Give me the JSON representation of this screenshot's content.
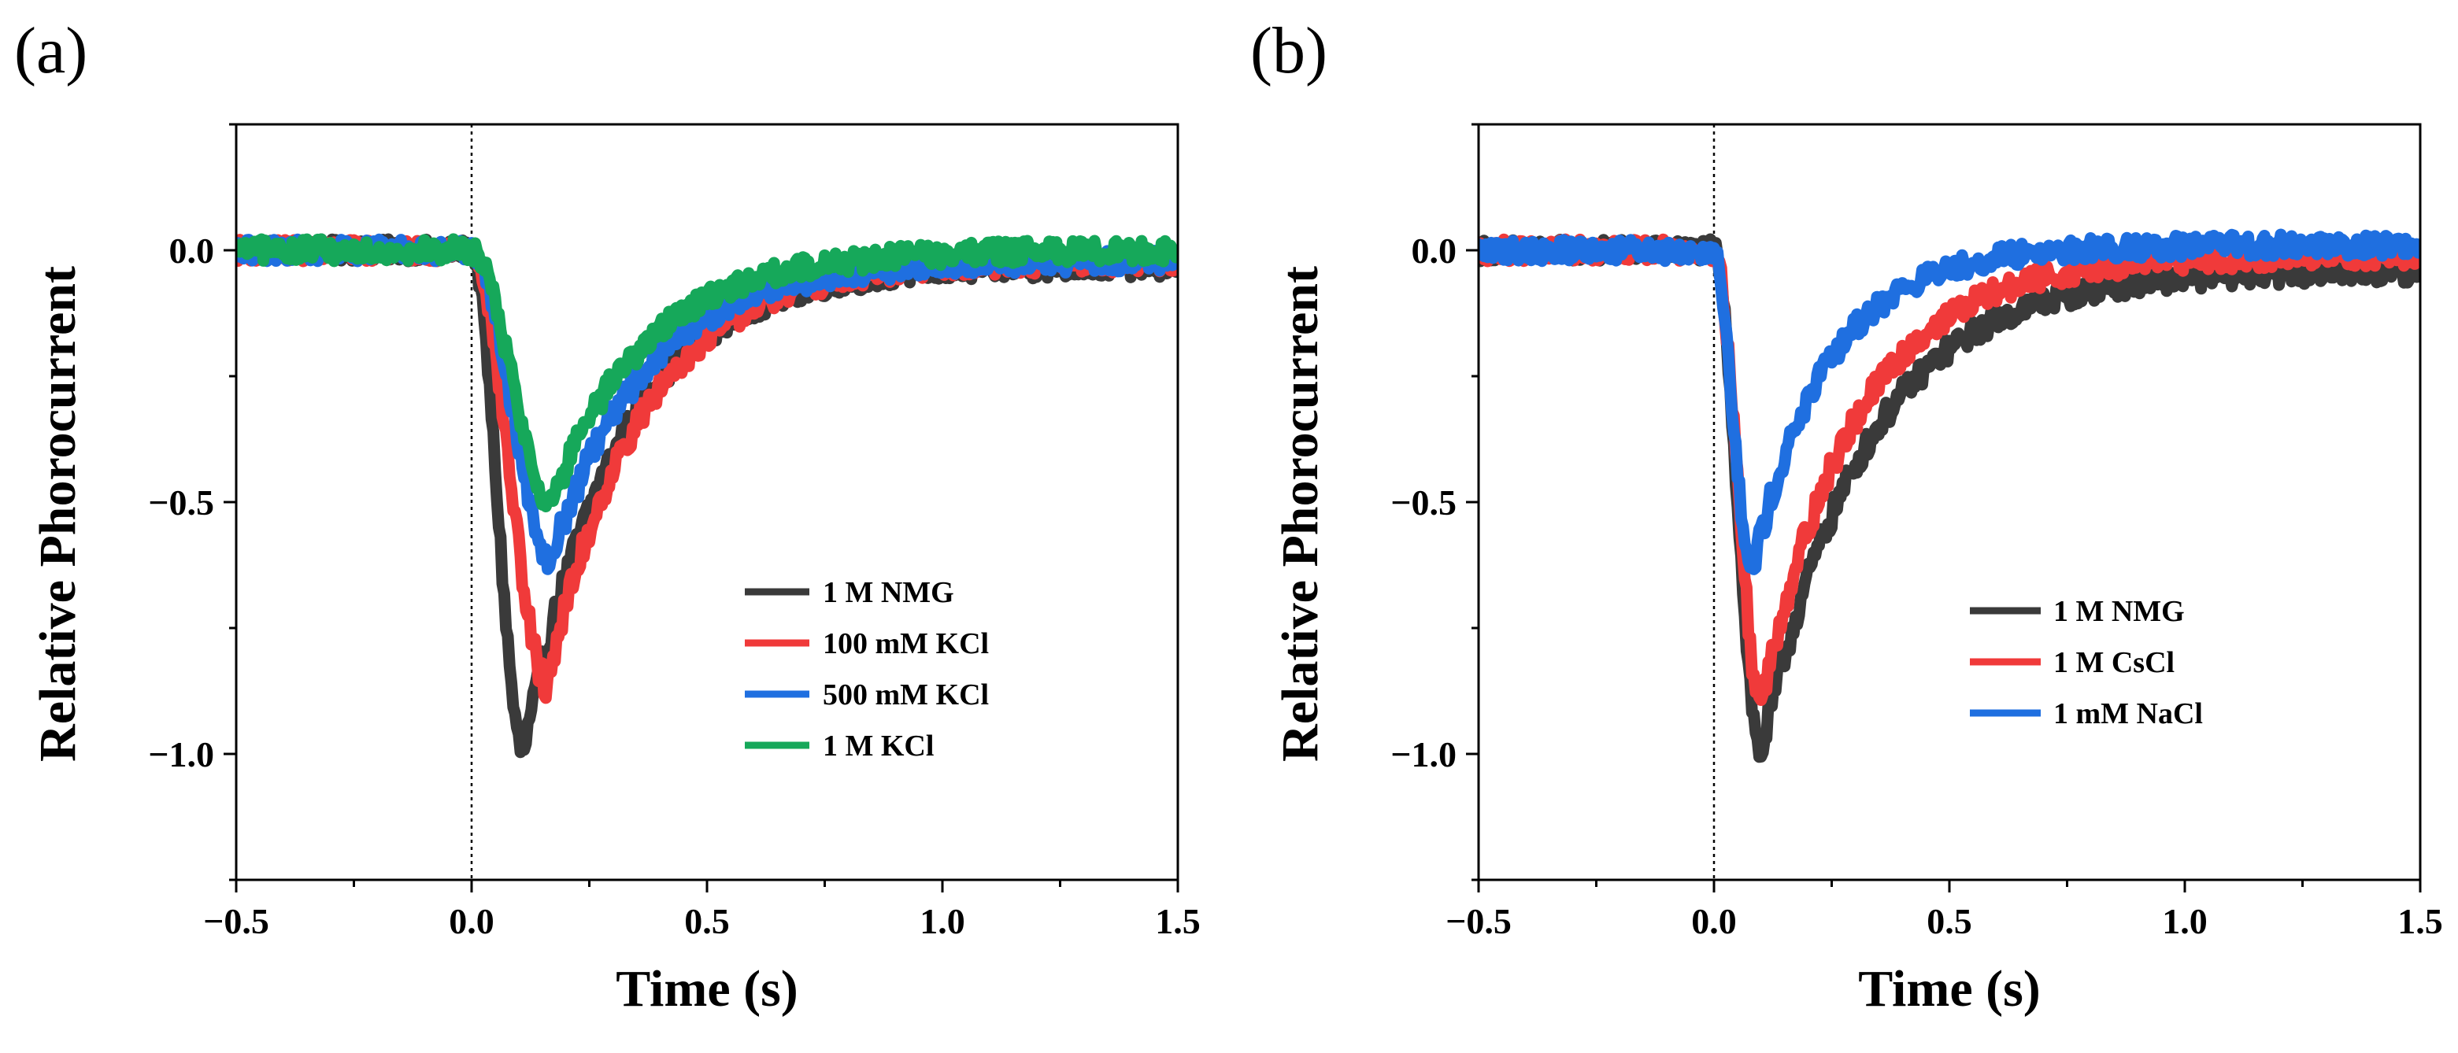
{
  "figure": {
    "panels": [
      "(a)",
      "(b)"
    ]
  },
  "chart_data": [
    {
      "type": "line",
      "panel_label": "(a)",
      "xlabel": "Time (s)",
      "ylabel": "Relative Phorocurrent",
      "xlim": [
        -0.5,
        1.5
      ],
      "ylim": [
        -1.25,
        0.25
      ],
      "xticks": [
        -0.5,
        0.0,
        0.5,
        1.0,
        1.5
      ],
      "xtick_labels": [
        "−0.5",
        "0.0",
        "0.5",
        "1.0",
        "1.5"
      ],
      "yticks": [
        0.0,
        -0.5,
        -1.0
      ],
      "ytick_labels": [
        "0.0",
        "−0.5",
        "−1.0"
      ],
      "reference_line_x": 0.0,
      "legend_position": "right",
      "series": [
        {
          "name": "1 M NMG",
          "color": "#3a3a3a",
          "peak_time": 0.11,
          "peak_value": -1.0,
          "tau": 0.2,
          "baseline_end": -0.03
        },
        {
          "name": "100 mM KCl",
          "color": "#f03a3a",
          "peak_time": 0.16,
          "peak_value": -0.86,
          "tau": 0.2,
          "baseline_end": -0.02
        },
        {
          "name": "500 mM KCl",
          "color": "#1f6fe0",
          "peak_time": 0.17,
          "peak_value": -0.61,
          "tau": 0.2,
          "baseline_end": -0.02
        },
        {
          "name": "1 M KCl",
          "color": "#16a85a",
          "peak_time": 0.17,
          "peak_value": -0.5,
          "tau": 0.2,
          "baseline_end": 0.0
        }
      ]
    },
    {
      "type": "line",
      "panel_label": "(b)",
      "xlabel": "Time (s)",
      "ylabel": "Relative Phorocurrent",
      "xlim": [
        -0.5,
        1.5
      ],
      "ylim": [
        -1.25,
        0.25
      ],
      "xticks": [
        -0.5,
        0.0,
        0.5,
        1.0,
        1.5
      ],
      "xtick_labels": [
        "−0.5",
        "0.0",
        "0.5",
        "1.0",
        "1.5"
      ],
      "yticks": [
        0.0,
        -0.5,
        -1.0
      ],
      "ytick_labels": [
        "0.0",
        "−0.5",
        "−1.0"
      ],
      "reference_line_x": 0.0,
      "legend_position": "right",
      "series": [
        {
          "name": "1 M NMG",
          "color": "#3a3a3a",
          "peak_time": 0.1,
          "peak_value": -1.0,
          "tau": 0.22,
          "baseline_end": -0.04
        },
        {
          "name": "1 M CsCl",
          "color": "#f03a3a",
          "peak_time": 0.1,
          "peak_value": -0.9,
          "tau": 0.2,
          "baseline_end": -0.01
        },
        {
          "name": "1 mM NaCl",
          "color": "#1f6fe0",
          "peak_time": 0.08,
          "peak_value": -0.64,
          "tau": 0.16,
          "baseline_end": 0.01
        }
      ]
    }
  ]
}
